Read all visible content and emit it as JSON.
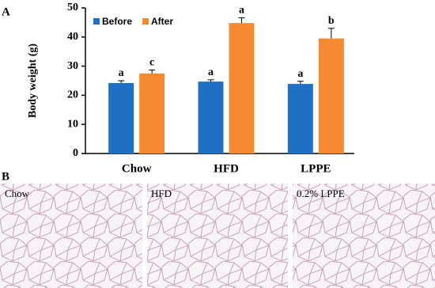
{
  "panel_labels": [
    "A",
    "B"
  ],
  "chart_data": {
    "type": "bar",
    "ylabel": "Body weight (g)",
    "categories": [
      "Chow",
      "HFD",
      "LPPE"
    ],
    "series": [
      {
        "name": "Before",
        "color": "#1f6fc4",
        "values": [
          24.2,
          24.7,
          23.9
        ],
        "errors": [
          0.8,
          0.6,
          0.9
        ],
        "letters": [
          "a",
          "a",
          "a"
        ]
      },
      {
        "name": "After",
        "color": "#f58a33",
        "values": [
          27.5,
          44.8,
          39.5
        ],
        "errors": [
          1.2,
          1.8,
          3.5
        ],
        "letters": [
          "c",
          "a",
          "b"
        ]
      }
    ],
    "ylim": [
      0,
      50
    ],
    "yticks": [
      0,
      10,
      20,
      30,
      40,
      50
    ],
    "legend": "top-left"
  },
  "images": [
    {
      "label": "Chow"
    },
    {
      "label": "HFD"
    },
    {
      "label": "0.2% LPPE"
    }
  ]
}
